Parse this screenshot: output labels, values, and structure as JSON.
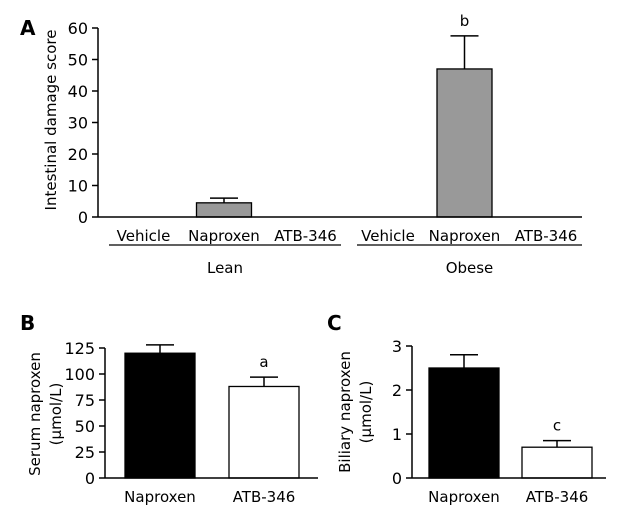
{
  "chart_data": [
    {
      "panel": "A",
      "type": "bar",
      "ylabel": "Intestinal damage score",
      "ylim": [
        0,
        60
      ],
      "yticks": [
        0,
        10,
        20,
        30,
        40,
        50,
        60
      ],
      "categories": [
        "Vehicle",
        "Naproxen",
        "ATB-346",
        "Vehicle",
        "Naproxen",
        "ATB-346"
      ],
      "groups": [
        {
          "label": "Lean",
          "categories": [
            "Vehicle",
            "Naproxen",
            "ATB-346"
          ]
        },
        {
          "label": "Obese",
          "categories": [
            "Vehicle",
            "Naproxen",
            "ATB-346"
          ]
        }
      ],
      "values": [
        0,
        4.5,
        0,
        0,
        47,
        0
      ],
      "errors": [
        0,
        1.5,
        0,
        0,
        10.5,
        0
      ],
      "annotations": [
        "",
        "",
        "",
        "",
        "b",
        ""
      ],
      "colors": [
        "#999999",
        "#999999",
        "#999999",
        "#999999",
        "#999999",
        "#999999"
      ]
    },
    {
      "panel": "B",
      "type": "bar",
      "ylabel": "Serum naproxen",
      "yunit": "(µmol/L)",
      "ylim": [
        0,
        125
      ],
      "yticks": [
        0,
        25,
        50,
        75,
        100,
        125
      ],
      "categories": [
        "Naproxen",
        "ATB-346"
      ],
      "values": [
        120,
        88
      ],
      "errors": [
        8,
        9
      ],
      "annotations": [
        "",
        "a"
      ],
      "colors": [
        "#000000",
        "#ffffff"
      ]
    },
    {
      "panel": "C",
      "type": "bar",
      "ylabel": "Biliary naproxen",
      "yunit": "(µmol/L)",
      "ylim": [
        0,
        3
      ],
      "yticks": [
        0,
        1,
        2,
        3
      ],
      "categories": [
        "Naproxen",
        "ATB-346"
      ],
      "values": [
        2.5,
        0.7
      ],
      "errors": [
        0.3,
        0.15
      ],
      "annotations": [
        "",
        "c"
      ],
      "colors": [
        "#000000",
        "#ffffff"
      ]
    }
  ]
}
